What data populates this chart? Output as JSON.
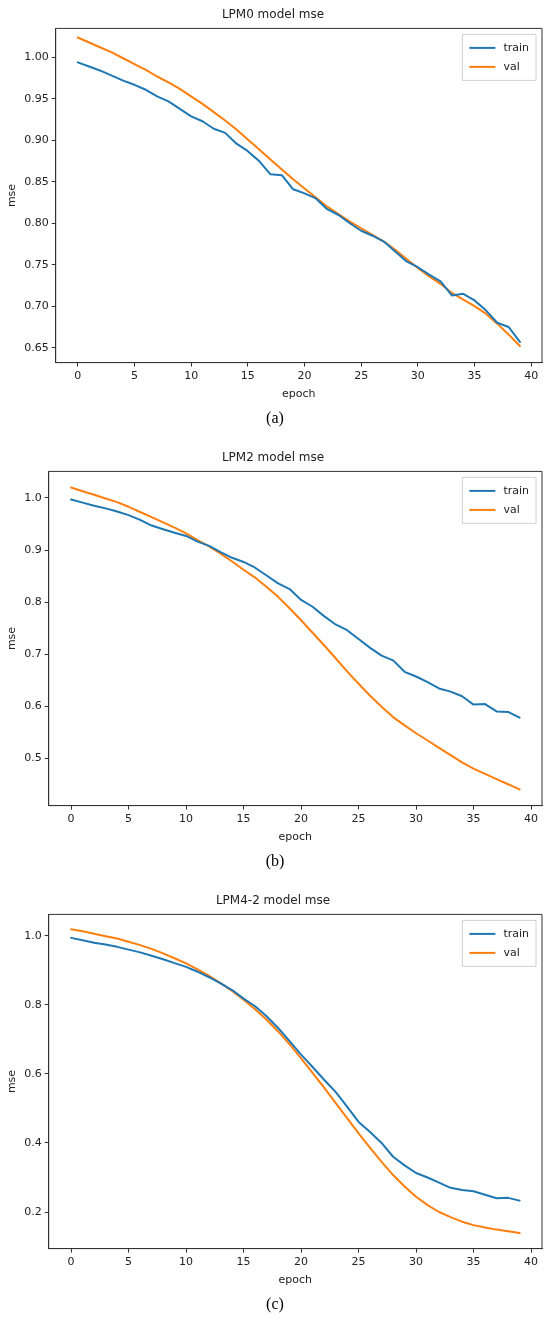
{
  "chart_data": [
    {
      "type": "line",
      "title": "LPM0 model mse",
      "xlabel": "epoch",
      "ylabel": "mse",
      "legend": "top right",
      "annotations": [
        "(a)"
      ],
      "x": [
        0,
        1,
        2,
        3,
        4,
        5,
        6,
        7,
        8,
        9,
        10,
        11,
        12,
        13,
        14,
        15,
        16,
        17,
        18,
        19,
        20,
        21,
        22,
        23,
        24,
        25,
        26,
        27,
        28,
        29,
        30,
        31,
        32,
        33,
        34,
        35,
        36,
        37,
        38,
        39
      ],
      "xlim": [
        -1.95,
        40.95
      ],
      "xticks": [
        0,
        5,
        10,
        15,
        20,
        25,
        30,
        35,
        40
      ],
      "ylim": [
        0.632,
        1.035
      ],
      "yticks": [
        {
          "value": 0.65,
          "label": "0.65"
        },
        {
          "value": 0.7,
          "label": "0.70"
        },
        {
          "value": 0.75,
          "label": "0.75"
        },
        {
          "value": 0.8,
          "label": "0.80"
        },
        {
          "value": 0.85,
          "label": "0.85"
        },
        {
          "value": 0.9,
          "label": "0.90"
        },
        {
          "value": 0.95,
          "label": "0.95"
        },
        {
          "value": 1.0,
          "label": "1.00"
        }
      ],
      "series": [
        {
          "name": "train",
          "color": "#1f77b4",
          "values": [
            0.994,
            0.989,
            0.984,
            0.978,
            0.972,
            0.967,
            0.961,
            0.953,
            0.947,
            0.938,
            0.929,
            0.923,
            0.914,
            0.909,
            0.896,
            0.887,
            0.875,
            0.859,
            0.858,
            0.841,
            0.836,
            0.83,
            0.817,
            0.81,
            0.8,
            0.791,
            0.785,
            0.778,
            0.766,
            0.754,
            0.747,
            0.738,
            0.73,
            0.713,
            0.715,
            0.707,
            0.695,
            0.68,
            0.675,
            0.657
          ]
        },
        {
          "name": "val",
          "color": "#ff7f0e",
          "values": [
            1.024,
            1.018,
            1.012,
            1.006,
            0.999,
            0.992,
            0.985,
            0.977,
            0.97,
            0.962,
            0.953,
            0.944,
            0.934,
            0.924,
            0.913,
            0.901,
            0.889,
            0.877,
            0.865,
            0.853,
            0.842,
            0.831,
            0.82,
            0.811,
            0.802,
            0.794,
            0.786,
            0.778,
            0.768,
            0.757,
            0.746,
            0.736,
            0.727,
            0.716,
            0.708,
            0.7,
            0.691,
            0.679,
            0.666,
            0.652
          ]
        }
      ]
    },
    {
      "type": "line",
      "title": "LPM2 model mse",
      "xlabel": "epoch",
      "ylabel": "mse",
      "legend": "top right",
      "annotations": [
        "(b)"
      ],
      "x": [
        0,
        1,
        2,
        3,
        4,
        5,
        6,
        7,
        8,
        9,
        10,
        11,
        12,
        13,
        14,
        15,
        16,
        17,
        18,
        19,
        20,
        21,
        22,
        23,
        24,
        25,
        26,
        27,
        28,
        29,
        30,
        31,
        32,
        33,
        34,
        35,
        36,
        37,
        38,
        39
      ],
      "xlim": [
        -1.95,
        40.95
      ],
      "xticks": [
        0,
        5,
        10,
        15,
        20,
        25,
        30,
        35,
        40
      ],
      "ylim": [
        0.409,
        1.051
      ],
      "yticks": [
        {
          "value": 0.5,
          "label": "0.5"
        },
        {
          "value": 0.6,
          "label": "0.6"
        },
        {
          "value": 0.7,
          "label": "0.7"
        },
        {
          "value": 0.8,
          "label": "0.8"
        },
        {
          "value": 0.9,
          "label": "0.9"
        },
        {
          "value": 1.0,
          "label": "1.0"
        }
      ],
      "series": [
        {
          "name": "train",
          "color": "#1f77b4",
          "values": [
            0.997,
            0.991,
            0.985,
            0.98,
            0.974,
            0.967,
            0.958,
            0.947,
            0.94,
            0.933,
            0.927,
            0.916,
            0.908,
            0.896,
            0.885,
            0.877,
            0.866,
            0.851,
            0.836,
            0.825,
            0.804,
            0.791,
            0.773,
            0.757,
            0.746,
            0.729,
            0.712,
            0.697,
            0.688,
            0.666,
            0.657,
            0.646,
            0.634,
            0.628,
            0.619,
            0.603,
            0.604,
            0.59,
            0.589,
            0.578
          ]
        },
        {
          "name": "val",
          "color": "#ff7f0e",
          "values": [
            1.02,
            1.013,
            1.006,
            0.999,
            0.992,
            0.983,
            0.973,
            0.963,
            0.953,
            0.943,
            0.932,
            0.919,
            0.907,
            0.893,
            0.878,
            0.862,
            0.847,
            0.829,
            0.81,
            0.788,
            0.765,
            0.741,
            0.717,
            0.692,
            0.667,
            0.643,
            0.62,
            0.599,
            0.579,
            0.563,
            0.548,
            0.534,
            0.52,
            0.506,
            0.492,
            0.48,
            0.47,
            0.46,
            0.45,
            0.44
          ]
        }
      ]
    },
    {
      "type": "line",
      "title": "LPM4-2 model mse",
      "xlabel": "epoch",
      "ylabel": "mse",
      "legend": "top right",
      "annotations": [
        "(c)"
      ],
      "x": [
        0,
        1,
        2,
        3,
        4,
        5,
        6,
        7,
        8,
        9,
        10,
        11,
        12,
        13,
        14,
        15,
        16,
        17,
        18,
        19,
        20,
        21,
        22,
        23,
        24,
        25,
        26,
        27,
        28,
        29,
        30,
        31,
        32,
        33,
        34,
        35,
        36,
        37,
        38,
        39
      ],
      "xlim": [
        -1.95,
        40.95
      ],
      "xticks": [
        0,
        5,
        10,
        15,
        20,
        25,
        30,
        35,
        40
      ],
      "ylim": [
        0.094,
        1.062
      ],
      "yticks": [
        {
          "value": 0.2,
          "label": "0.2"
        },
        {
          "value": 0.4,
          "label": "0.4"
        },
        {
          "value": 0.6,
          "label": "0.6"
        },
        {
          "value": 0.8,
          "label": "0.8"
        },
        {
          "value": 1.0,
          "label": "1.0"
        }
      ],
      "series": [
        {
          "name": "train",
          "color": "#1f77b4",
          "values": [
            0.994,
            0.987,
            0.98,
            0.975,
            0.968,
            0.96,
            0.952,
            0.942,
            0.932,
            0.921,
            0.91,
            0.896,
            0.88,
            0.862,
            0.843,
            0.818,
            0.796,
            0.767,
            0.733,
            0.695,
            0.656,
            0.62,
            0.583,
            0.548,
            0.505,
            0.461,
            0.432,
            0.4,
            0.36,
            0.335,
            0.313,
            0.3,
            0.285,
            0.27,
            0.264,
            0.26,
            0.25,
            0.24,
            0.241,
            0.233
          ]
        },
        {
          "name": "val",
          "color": "#ff7f0e",
          "values": [
            1.019,
            1.013,
            1.006,
            0.999,
            0.992,
            0.983,
            0.973,
            0.962,
            0.949,
            0.935,
            0.92,
            0.903,
            0.884,
            0.863,
            0.84,
            0.815,
            0.787,
            0.757,
            0.723,
            0.686,
            0.645,
            0.603,
            0.56,
            0.516,
            0.472,
            0.428,
            0.386,
            0.345,
            0.307,
            0.274,
            0.244,
            0.22,
            0.2,
            0.185,
            0.172,
            0.162,
            0.155,
            0.149,
            0.144,
            0.139
          ]
        }
      ]
    }
  ]
}
